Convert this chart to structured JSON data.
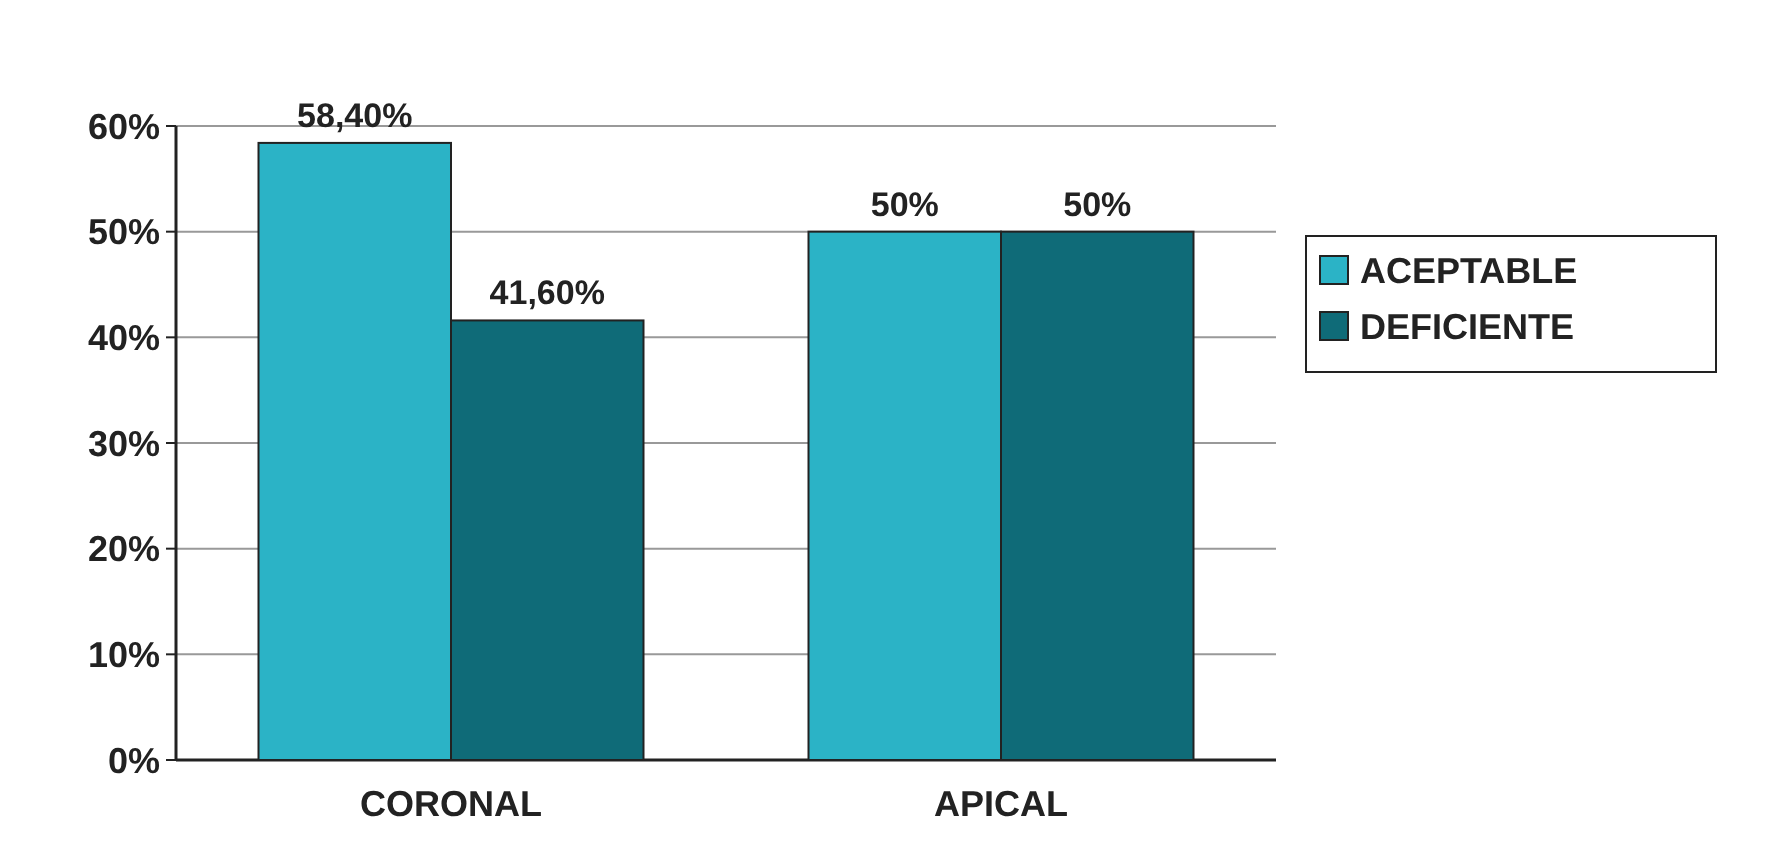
{
  "chart_data": {
    "type": "bar",
    "categories": [
      "CORONAL",
      "APICAL"
    ],
    "series": [
      {
        "name": "ACEPTABLE",
        "color": "#2bb3c6",
        "values": [
          58.4,
          50
        ],
        "value_labels": [
          "58,40%",
          "50%"
        ]
      },
      {
        "name": "DEFICIENTE",
        "color": "#0f6b78",
        "values": [
          41.6,
          50
        ],
        "value_labels": [
          "41,60%",
          "50%"
        ]
      }
    ],
    "ylim": [
      0,
      60
    ],
    "yticks": [
      {
        "value": 0,
        "label": "0%"
      },
      {
        "value": 10,
        "label": "10%"
      },
      {
        "value": 20,
        "label": "20%"
      },
      {
        "value": 30,
        "label": "30%"
      },
      {
        "value": 40,
        "label": "40%"
      },
      {
        "value": 50,
        "label": "50%"
      },
      {
        "value": 60,
        "label": "60%"
      }
    ],
    "grid": "y",
    "legend": "right"
  }
}
